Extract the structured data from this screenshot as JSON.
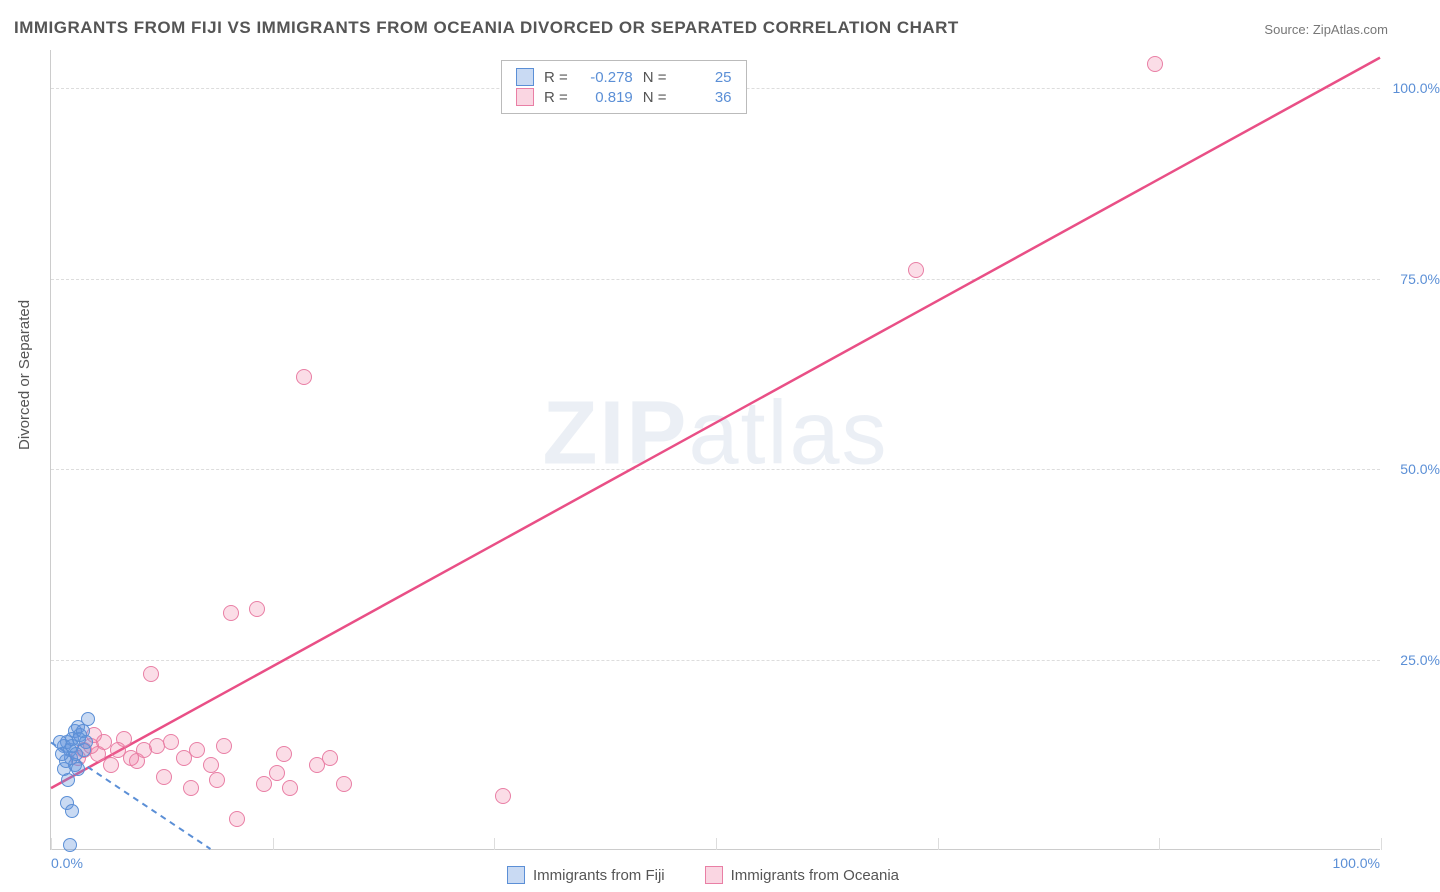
{
  "title": "IMMIGRANTS FROM FIJI VS IMMIGRANTS FROM OCEANIA DIVORCED OR SEPARATED CORRELATION CHART",
  "source_label": "Source:",
  "source_name": "ZipAtlas.com",
  "watermark_a": "ZIP",
  "watermark_b": "atlas",
  "ylabel": "Divorced or Separated",
  "chart": {
    "type": "scatter",
    "xlim": [
      0,
      100
    ],
    "ylim": [
      0,
      105
    ],
    "yticks": [
      25,
      50,
      75,
      100
    ],
    "ytick_labels": [
      "25.0%",
      "50.0%",
      "75.0%",
      "100.0%"
    ],
    "xticks_minor": [
      0,
      16.67,
      33.33,
      50,
      66.67,
      83.33,
      100
    ],
    "xtick_left_label": "0.0%",
    "xtick_right_label": "100.0%",
    "background_color": "#ffffff",
    "grid_color": "#dddddd"
  },
  "series": {
    "fiji": {
      "label": "Immigrants from Fiji",
      "color_fill": "rgba(100,150,220,0.35)",
      "color_stroke": "#5b8fd6",
      "R": "-0.278",
      "N": "25",
      "trend": {
        "x1": 0,
        "y1": 14,
        "x2": 12,
        "y2": 0,
        "dashed": true
      },
      "points": [
        [
          1.0,
          13.5
        ],
        [
          1.2,
          14.0
        ],
        [
          1.4,
          13.0
        ],
        [
          1.6,
          14.5
        ],
        [
          1.8,
          15.5
        ],
        [
          2.0,
          16.0
        ],
        [
          2.2,
          15.0
        ],
        [
          1.5,
          12.0
        ],
        [
          1.0,
          10.5
        ],
        [
          2.5,
          13.0
        ],
        [
          2.8,
          17.0
        ],
        [
          1.8,
          11.0
        ],
        [
          1.3,
          9.0
        ],
        [
          1.1,
          11.5
        ],
        [
          0.8,
          12.5
        ],
        [
          0.7,
          14.0
        ],
        [
          1.6,
          13.5
        ],
        [
          2.1,
          14.5
        ],
        [
          2.4,
          15.5
        ],
        [
          1.9,
          12.5
        ],
        [
          1.2,
          6.0
        ],
        [
          1.6,
          5.0
        ],
        [
          1.4,
          0.5
        ],
        [
          2.6,
          14.0
        ],
        [
          2.0,
          10.5
        ]
      ]
    },
    "oceania": {
      "label": "Immigrants from Oceania",
      "color_fill": "rgba(240,120,160,0.25)",
      "color_stroke": "#e97fa5",
      "R": "0.819",
      "N": "36",
      "trend": {
        "x1": 0,
        "y1": 8,
        "x2": 100,
        "y2": 104,
        "dashed": false
      },
      "points": [
        [
          2.0,
          12.0
        ],
        [
          2.5,
          13.0
        ],
        [
          3.0,
          13.5
        ],
        [
          3.5,
          12.5
        ],
        [
          4.0,
          14.0
        ],
        [
          4.5,
          11.0
        ],
        [
          5.0,
          13.0
        ],
        [
          5.5,
          14.5
        ],
        [
          6.0,
          12.0
        ],
        [
          6.5,
          11.5
        ],
        [
          7.0,
          13.0
        ],
        [
          7.5,
          23.0
        ],
        [
          8.0,
          13.5
        ],
        [
          8.5,
          9.5
        ],
        [
          9.0,
          14.0
        ],
        [
          10.0,
          12.0
        ],
        [
          10.5,
          8.0
        ],
        [
          11.0,
          13.0
        ],
        [
          12.0,
          11.0
        ],
        [
          12.5,
          9.0
        ],
        [
          13.0,
          13.5
        ],
        [
          13.5,
          31.0
        ],
        [
          14.0,
          4.0
        ],
        [
          15.5,
          31.5
        ],
        [
          16.0,
          8.5
        ],
        [
          17.0,
          10.0
        ],
        [
          17.5,
          12.5
        ],
        [
          18.0,
          8.0
        ],
        [
          20.0,
          11.0
        ],
        [
          21.0,
          12.0
        ],
        [
          22.0,
          8.5
        ],
        [
          34.0,
          7.0
        ],
        [
          19.0,
          62.0
        ],
        [
          65.0,
          76.0
        ],
        [
          83.0,
          103.0
        ],
        [
          3.2,
          15.0
        ]
      ]
    }
  },
  "stats_labels": {
    "R": "R =",
    "N": "N ="
  }
}
